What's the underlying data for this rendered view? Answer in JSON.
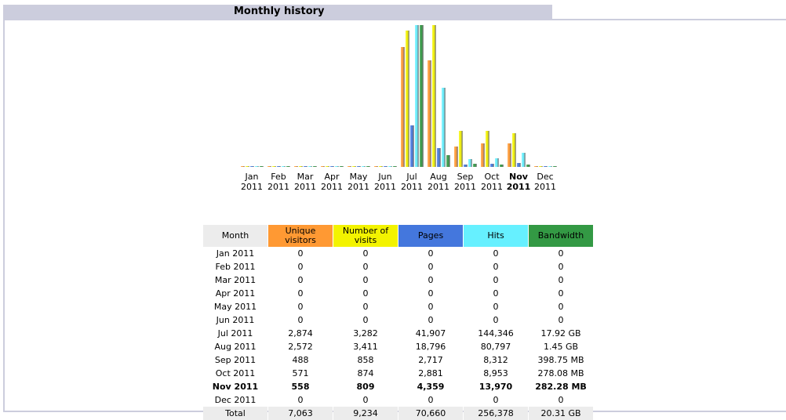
{
  "section_title": "Monthly history",
  "colors": {
    "unique_visitors": "#ff9933",
    "visits": "#f3f300",
    "pages": "#4477dd",
    "hits": "#66f0ff",
    "bandwidth": "#339944"
  },
  "chart_data": {
    "type": "bar",
    "categories": [
      "Jan 2011",
      "Feb 2011",
      "Mar 2011",
      "Apr 2011",
      "May 2011",
      "Jun 2011",
      "Jul 2011",
      "Aug 2011",
      "Sep 2011",
      "Oct 2011",
      "Nov 2011",
      "Dec 2011"
    ],
    "month_labels": [
      "Jan",
      "Feb",
      "Mar",
      "Apr",
      "May",
      "Jun",
      "Jul",
      "Aug",
      "Sep",
      "Oct",
      "Nov",
      "Dec"
    ],
    "year_label": "2011",
    "highlighted_month": "Nov",
    "series": [
      {
        "key": "unique_visitors",
        "values": [
          0,
          0,
          0,
          0,
          0,
          0,
          2874,
          2572,
          488,
          571,
          558,
          0
        ]
      },
      {
        "key": "visits",
        "values": [
          0,
          0,
          0,
          0,
          0,
          0,
          3282,
          3411,
          858,
          874,
          809,
          0
        ]
      },
      {
        "key": "pages",
        "values": [
          0,
          0,
          0,
          0,
          0,
          0,
          41907,
          18796,
          2717,
          2881,
          4359,
          0
        ]
      },
      {
        "key": "hits",
        "values": [
          0,
          0,
          0,
          0,
          0,
          0,
          144346,
          80797,
          8312,
          8953,
          13970,
          0
        ]
      },
      {
        "key": "bandwidth_mb",
        "values": [
          0,
          0,
          0,
          0,
          0,
          0,
          18350,
          1485,
          398.75,
          278.08,
          282.28,
          0
        ]
      }
    ]
  },
  "table": {
    "headers": {
      "month": "Month",
      "unique_visitors": [
        "Unique",
        "visitors"
      ],
      "visits": [
        "Number of",
        "visits"
      ],
      "pages": "Pages",
      "hits": "Hits",
      "bandwidth": "Bandwidth"
    },
    "rows": [
      {
        "month": "Jan 2011",
        "u": "0",
        "v": "0",
        "p": "0",
        "h": "0",
        "b": "0"
      },
      {
        "month": "Feb 2011",
        "u": "0",
        "v": "0",
        "p": "0",
        "h": "0",
        "b": "0"
      },
      {
        "month": "Mar 2011",
        "u": "0",
        "v": "0",
        "p": "0",
        "h": "0",
        "b": "0"
      },
      {
        "month": "Apr 2011",
        "u": "0",
        "v": "0",
        "p": "0",
        "h": "0",
        "b": "0"
      },
      {
        "month": "May 2011",
        "u": "0",
        "v": "0",
        "p": "0",
        "h": "0",
        "b": "0"
      },
      {
        "month": "Jun 2011",
        "u": "0",
        "v": "0",
        "p": "0",
        "h": "0",
        "b": "0"
      },
      {
        "month": "Jul 2011",
        "u": "2,874",
        "v": "3,282",
        "p": "41,907",
        "h": "144,346",
        "b": "17.92 GB"
      },
      {
        "month": "Aug 2011",
        "u": "2,572",
        "v": "3,411",
        "p": "18,796",
        "h": "80,797",
        "b": "1.45 GB"
      },
      {
        "month": "Sep 2011",
        "u": "488",
        "v": "858",
        "p": "2,717",
        "h": "8,312",
        "b": "398.75 MB"
      },
      {
        "month": "Oct 2011",
        "u": "571",
        "v": "874",
        "p": "2,881",
        "h": "8,953",
        "b": "278.08 MB"
      },
      {
        "month": "Nov 2011",
        "u": "558",
        "v": "809",
        "p": "4,359",
        "h": "13,970",
        "b": "282.28 MB",
        "bold": true
      },
      {
        "month": "Dec 2011",
        "u": "0",
        "v": "0",
        "p": "0",
        "h": "0",
        "b": "0"
      }
    ],
    "total": {
      "month": "Total",
      "u": "7,063",
      "v": "9,234",
      "p": "70,660",
      "h": "256,378",
      "b": "20.31 GB"
    }
  }
}
